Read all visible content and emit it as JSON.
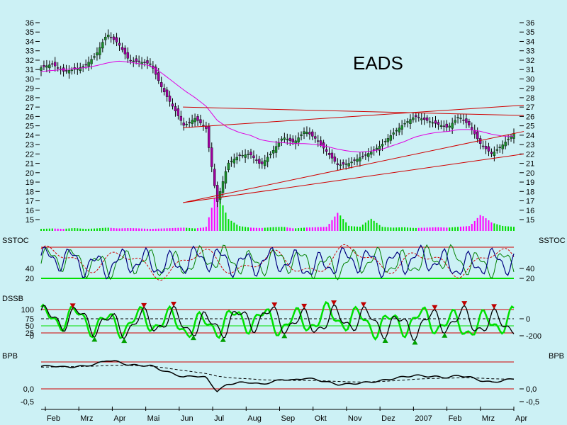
{
  "chart_data": {
    "title": "EADS",
    "colors": {
      "background": "#ccf1f5",
      "candle_up": "#1a8f2a",
      "candle_down": "#a000a0",
      "moving_average": "#e000e0",
      "trendline": "#d00000",
      "volume_up": "#00dd00",
      "volume_down": "#ff00ff",
      "oscillator_fast": "#000080",
      "oscillator_slow": "#008000",
      "oscillator_signal": "#d00000",
      "band_line": "#00e000"
    },
    "x_labels": [
      "Feb",
      "Mrz",
      "Apr",
      "Mai",
      "Jun",
      "Jul",
      "Aug",
      "Sep",
      "Okt",
      "Nov",
      "Dez",
      "2007",
      "Feb",
      "Mrz",
      "Apr"
    ],
    "panels": [
      {
        "name": "price",
        "type": "candlestick",
        "y_ticks": [
          "36",
          "35",
          "34",
          "33",
          "32",
          "31",
          "30",
          "29",
          "28",
          "27",
          "26",
          "25",
          "24",
          "23",
          "22",
          "21",
          "20",
          "19",
          "18",
          "17",
          "16",
          "15"
        ],
        "ylim": [
          15,
          36
        ],
        "close": [
          31.2,
          31.6,
          30.8,
          31.0,
          31.4,
          32.6,
          34.8,
          33.8,
          32.0,
          31.8,
          31.6,
          29.0,
          27.0,
          25.0,
          25.8,
          24.8,
          16.8,
          21.0,
          21.8,
          22.0,
          20.8,
          22.2,
          23.8,
          23.2,
          24.5,
          23.6,
          22.2,
          20.8,
          21.0,
          21.6,
          22.2,
          23.0,
          24.2,
          25.2,
          26.0,
          25.6,
          25.2,
          24.8,
          26.0,
          25.0,
          23.0,
          22.0,
          23.0,
          24.2
        ],
        "moving_average": [
          30.8,
          30.9,
          31.0,
          31.1,
          31.2,
          31.4,
          31.7,
          31.9,
          31.8,
          31.6,
          31.4,
          30.6,
          29.7,
          28.8,
          28.0,
          27.1,
          25.6,
          24.8,
          24.3,
          24.0,
          23.5,
          23.3,
          23.2,
          23.1,
          23.1,
          23.0,
          22.8,
          22.5,
          22.3,
          22.2,
          22.3,
          22.5,
          22.9,
          23.3,
          23.8,
          24.1,
          24.3,
          24.4,
          24.6,
          24.6,
          24.4,
          24.1,
          23.9,
          23.9
        ],
        "trendlines": [
          {
            "from": [
              0.3,
              24.8
            ],
            "to": [
              1.0,
              27.2
            ]
          },
          {
            "from": [
              0.3,
              27.0
            ],
            "to": [
              1.0,
              26.1
            ]
          },
          {
            "from": [
              0.3,
              16.8
            ],
            "to": [
              1.0,
              24.4
            ]
          },
          {
            "from": [
              0.3,
              16.8
            ],
            "to": [
              1.0,
              22.0
            ]
          }
        ],
        "volume": [
          0.05,
          0.06,
          0.05,
          0.07,
          0.05,
          0.06,
          0.08,
          0.06,
          0.07,
          0.06,
          0.05,
          0.06,
          0.07,
          0.08,
          0.06,
          0.09,
          1.0,
          0.3,
          0.12,
          0.08,
          0.07,
          0.09,
          0.1,
          0.06,
          0.08,
          0.09,
          0.1,
          0.45,
          0.12,
          0.1,
          0.3,
          0.1,
          0.08,
          0.09,
          0.07,
          0.08,
          0.09,
          0.08,
          0.1,
          0.12,
          0.4,
          0.2,
          0.12,
          0.1
        ]
      },
      {
        "name": "SSTOC",
        "label": "SSTOC",
        "type": "oscillator",
        "y_ticks_right": [
          "40",
          "20"
        ],
        "y_ticks_left": [
          "40",
          "20"
        ],
        "ylim": [
          15,
          100
        ]
      },
      {
        "name": "DSSB",
        "label": "DSSB",
        "type": "oscillator",
        "y_ticks_left": [
          "100",
          "75",
          "50",
          "25",
          "0"
        ],
        "y_ticks_right": [
          "0",
          "-200"
        ]
      },
      {
        "name": "BPB",
        "label": "BPB",
        "type": "oscillator",
        "y_ticks_left": [
          "0,0",
          "-0,5"
        ],
        "y_ticks_right": [
          "0,0",
          "-0,5"
        ]
      }
    ]
  }
}
